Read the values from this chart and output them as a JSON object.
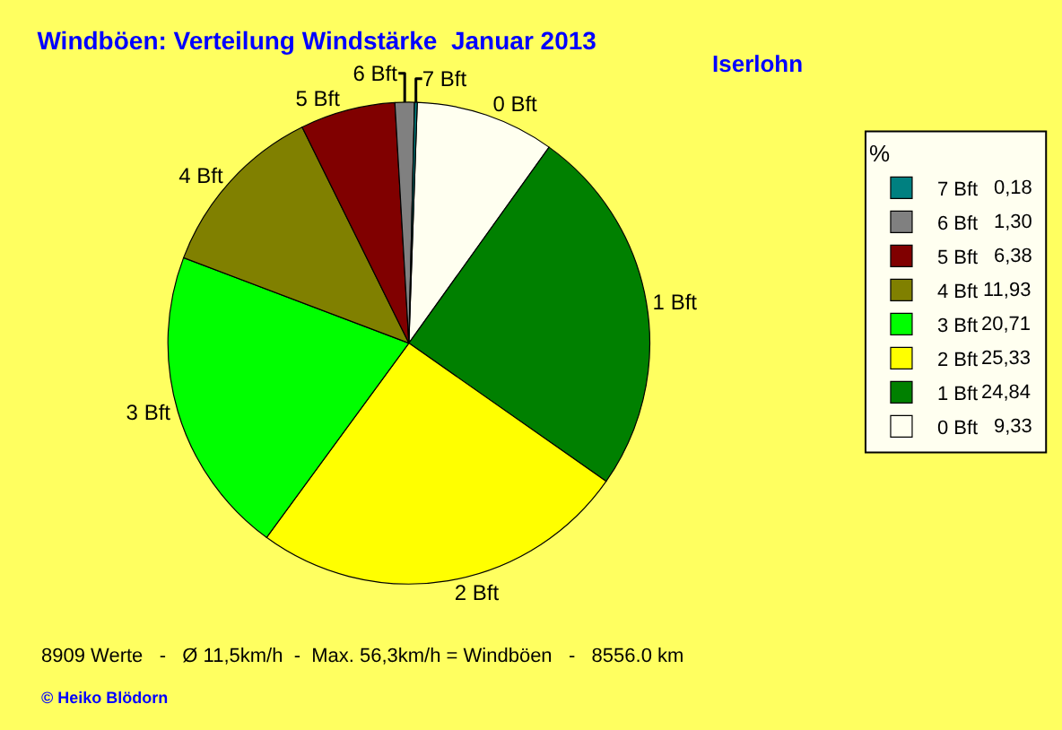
{
  "chart_data": {
    "type": "pie",
    "title": "Windböen: Verteilung Windstärke  Januar 2013",
    "subtitle": "Iserlohn",
    "legend_title": "%",
    "categories": [
      "0 Bft",
      "1 Bft",
      "2 Bft",
      "3 Bft",
      "4 Bft",
      "5 Bft",
      "6 Bft",
      "7 Bft"
    ],
    "values": [
      9.33,
      24.84,
      25.33,
      20.71,
      11.93,
      6.38,
      1.3,
      0.18
    ],
    "colors": [
      "#fffff0",
      "#008000",
      "#ffff00",
      "#00ff00",
      "#808000",
      "#800000",
      "#808080",
      "#008080"
    ],
    "value_labels": [
      "9,33",
      "24,84",
      "25,33",
      "20,71",
      "11,93",
      "6,38",
      "1,30",
      "0,18"
    ],
    "legend": "right",
    "annotations": [
      "8909 Werte   -   Ø 11,5km/h  -  Max. 56,3km/h = Windböen   -   8556.0 km",
      "© Heiko Blödorn"
    ]
  }
}
